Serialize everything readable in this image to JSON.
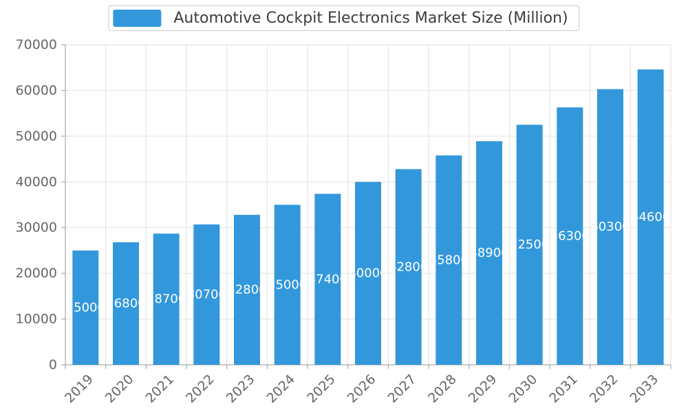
{
  "colors": {
    "bar": "#3398db",
    "grid": "#e2e2e2",
    "axis": "#999999",
    "tick_text": "#666666",
    "bar_label_text": "#ffffff",
    "legend_text": "#3d3d3d",
    "background": "#ffffff"
  },
  "chart_data": {
    "type": "bar",
    "title": "Automotive Cockpit Electronics Market Size (Million)",
    "categories": [
      "2019",
      "2020",
      "2021",
      "2022",
      "2023",
      "2024",
      "2025",
      "2026",
      "2027",
      "2028",
      "2029",
      "2030",
      "2031",
      "2032",
      "2033"
    ],
    "values": [
      25000,
      26800,
      28700,
      30700,
      32800,
      35000,
      37400,
      40000,
      42800,
      45800,
      48900,
      52500,
      56300,
      60300,
      64600
    ],
    "xlabel": "",
    "ylabel": "",
    "ylim": [
      0,
      70000
    ],
    "yticks": [
      0,
      10000,
      20000,
      30000,
      40000,
      50000,
      60000,
      70000
    ],
    "grid": true,
    "bar_labels": true,
    "legend_position": "top"
  }
}
